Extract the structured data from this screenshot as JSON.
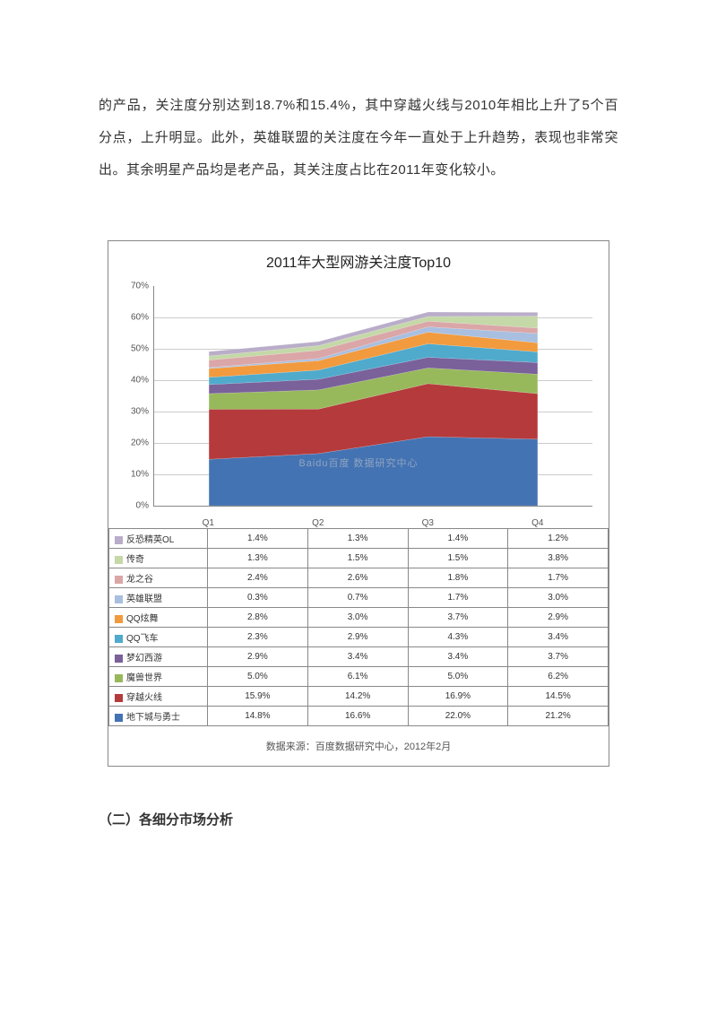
{
  "body_paragraph": "的产品，关注度分别达到18.7%和15.4%，其中穿越火线与2010年相比上升了5个百分点，上升明显。此外，英雄联盟的关注度在今年一直处于上升趋势，表现也非常突出。其余明星产品均是老产品，其关注度占比在2011年变化较小。",
  "section_heading": "（二）各细分市场分析",
  "chart": {
    "type": "stacked_area",
    "title": "2011年大型网游关注度Top10",
    "categories": [
      "Q1",
      "Q2",
      "Q3",
      "Q4"
    ],
    "ylim": [
      0,
      70
    ],
    "ytick_step": 10,
    "y_unit": "%",
    "background_color": "#ffffff",
    "grid_color": "#cccccc",
    "axis_color": "#888888",
    "title_fontsize": 16,
    "label_fontsize": 10,
    "series": [
      {
        "name": "地下城与勇士",
        "values": [
          14.8,
          16.6,
          22.0,
          21.2
        ],
        "color": "#4473b3"
      },
      {
        "name": "穿越火线",
        "values": [
          15.9,
          14.2,
          16.9,
          14.5
        ],
        "color": "#b53a3c"
      },
      {
        "name": "魔兽世界",
        "values": [
          5.0,
          6.1,
          5.0,
          6.2
        ],
        "color": "#97b95b"
      },
      {
        "name": "梦幻西游",
        "values": [
          2.9,
          3.4,
          3.4,
          3.7
        ],
        "color": "#7a619a"
      },
      {
        "name": "QQ飞车",
        "values": [
          2.3,
          2.9,
          4.3,
          3.4
        ],
        "color": "#50aacc"
      },
      {
        "name": "QQ炫舞",
        "values": [
          2.8,
          3.0,
          3.7,
          2.9
        ],
        "color": "#f29a3e"
      },
      {
        "name": "英雄联盟",
        "values": [
          0.3,
          0.7,
          1.7,
          3.0
        ],
        "color": "#a9bfe0"
      },
      {
        "name": "龙之谷",
        "values": [
          2.4,
          2.6,
          1.8,
          1.7
        ],
        "color": "#dba6a7"
      },
      {
        "name": "传奇",
        "values": [
          1.3,
          1.5,
          1.5,
          3.8
        ],
        "color": "#c5d8a8"
      },
      {
        "name": "反恐精英OL",
        "values": [
          1.4,
          1.3,
          1.4,
          1.2
        ],
        "color": "#b9adc9"
      }
    ],
    "source_text": "数据来源：百度数据研究中心，2012年2月",
    "watermark": "Baidu百度 数据研究中心"
  }
}
